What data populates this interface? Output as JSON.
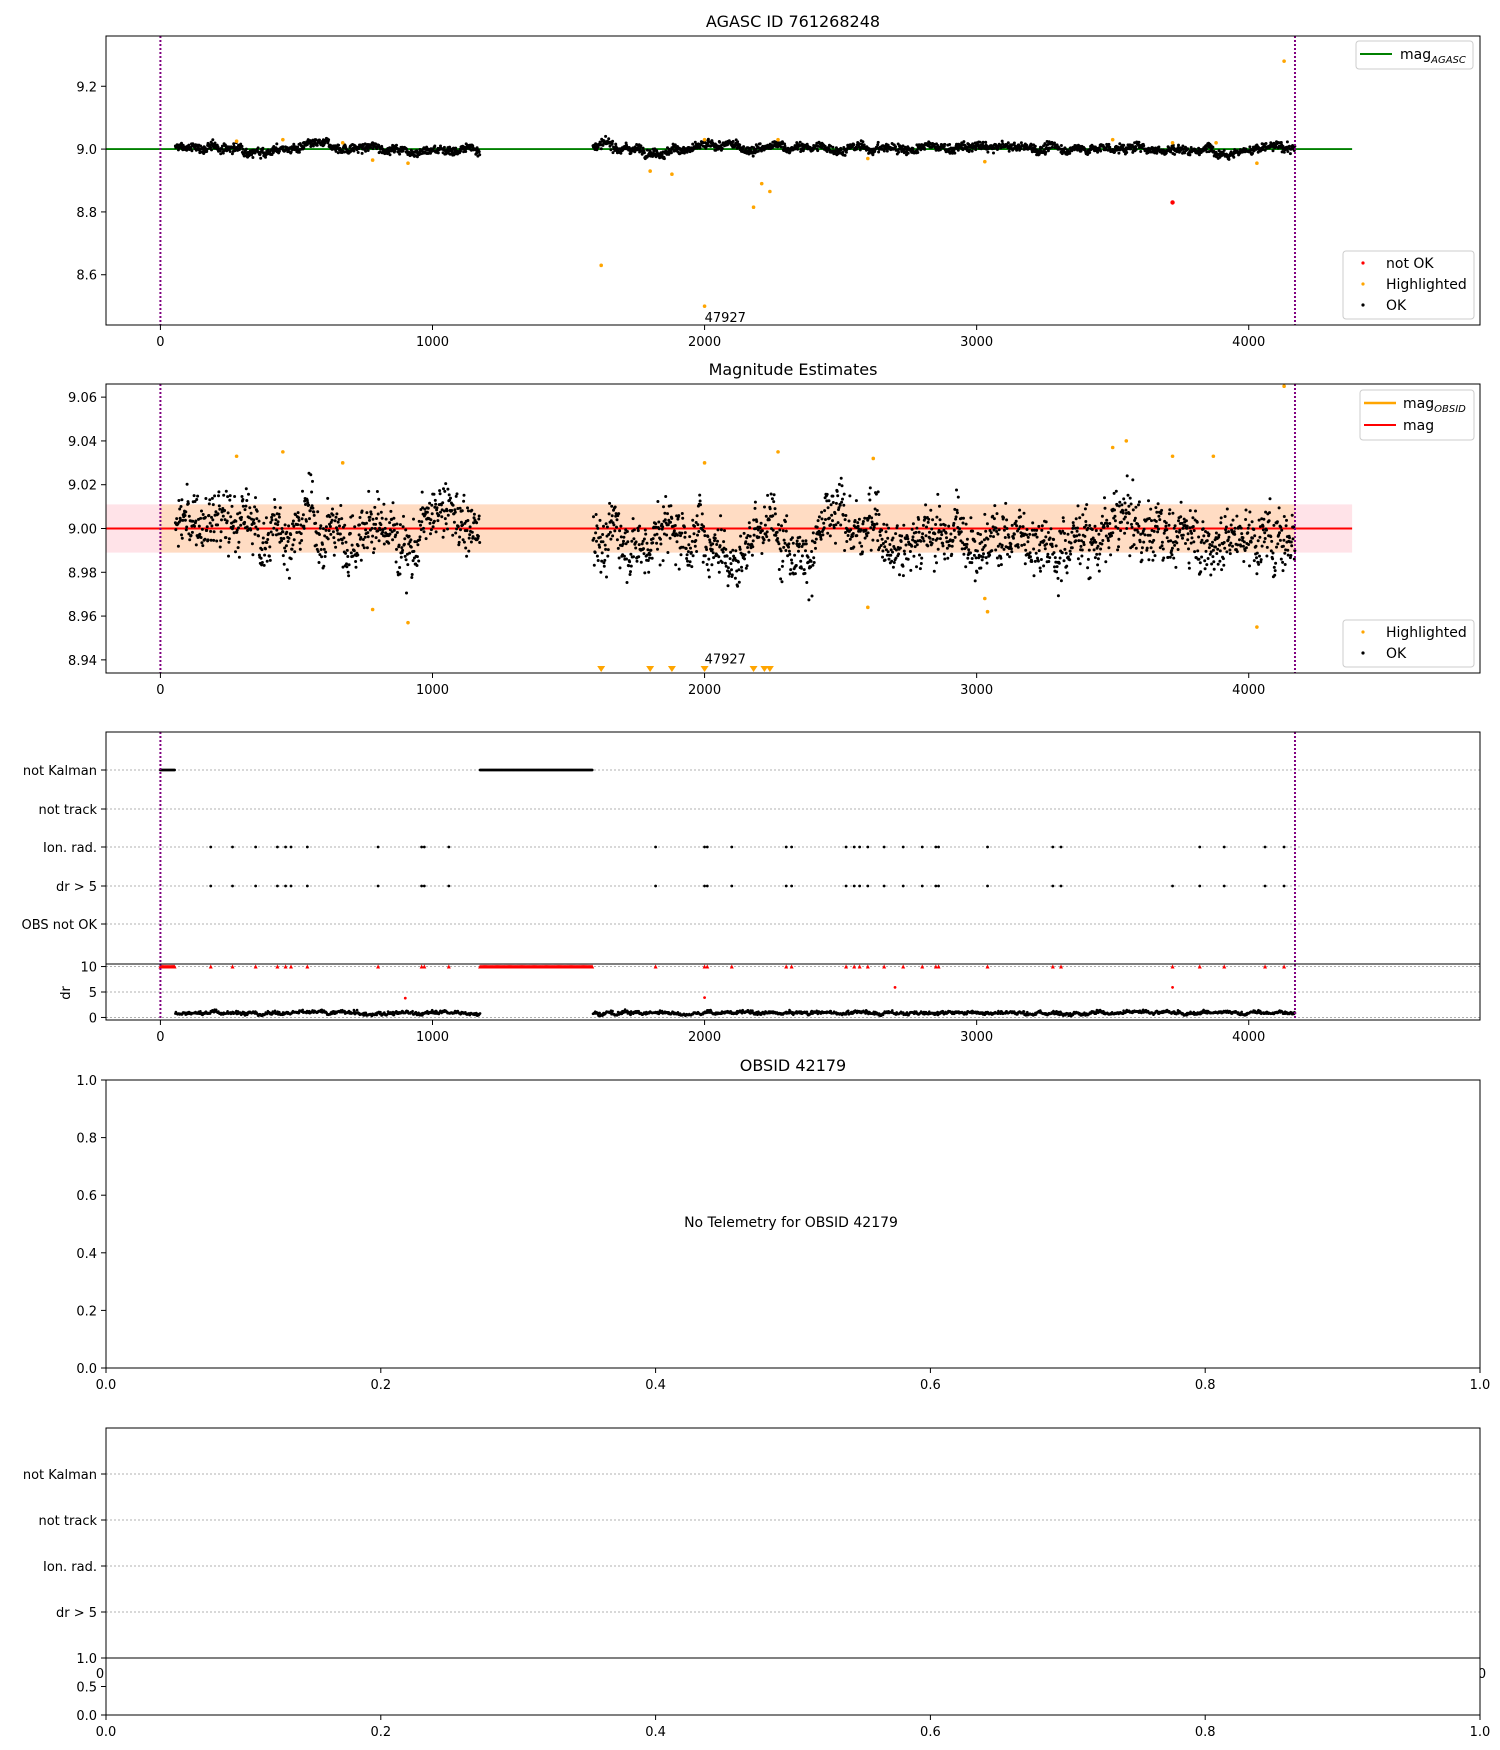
{
  "colors": {
    "ok": "#000000",
    "highlighted": "#ffa500",
    "not_ok": "#ff0000",
    "agasc": "#008000",
    "mag": "#ff0000",
    "mag_obsid": "#ffa500",
    "obs_window": "#800080",
    "band_outer": "#ffc0cb",
    "band_inner": "#ffdab9"
  },
  "chart_data": [
    {
      "id": "agasc-panel",
      "type": "scatter",
      "title": "AGASC ID 761268248",
      "xlim": [
        -200,
        4850
      ],
      "ylim": [
        8.44,
        9.36
      ],
      "xticks": [
        "0",
        "1000",
        "2000",
        "3000",
        "4000"
      ],
      "xtick_values": [
        0,
        1000,
        2000,
        3000,
        4000
      ],
      "yticks": [
        "8.6",
        "8.8",
        "9.0",
        "9.2"
      ],
      "ytick_values": [
        8.6,
        8.8,
        9.0,
        9.2
      ],
      "hline": {
        "y": 9.0,
        "x": [
          -200,
          4380
        ],
        "label": "mag",
        "sub": "AGASC"
      },
      "vlines": [
        0,
        4170
      ],
      "annotation": {
        "text": "47927",
        "x": 2000,
        "y": 8.465
      },
      "segments": [
        [
          55,
          1175
        ],
        [
          1590,
          4170
        ]
      ],
      "ok": {
        "center": 9.003,
        "spread": 0.012
      },
      "highlighted": [
        [
          280,
          9.025
        ],
        [
          450,
          9.03
        ],
        [
          670,
          9.02
        ],
        [
          780,
          8.965
        ],
        [
          910,
          8.955
        ],
        [
          1620,
          8.63
        ],
        [
          1800,
          8.93
        ],
        [
          1880,
          8.92
        ],
        [
          2000,
          8.5
        ],
        [
          2000,
          9.03
        ],
        [
          2180,
          8.815
        ],
        [
          2210,
          8.89
        ],
        [
          2240,
          8.865
        ],
        [
          2270,
          9.03
        ],
        [
          2600,
          8.97
        ],
        [
          3030,
          8.96
        ],
        [
          3500,
          9.03
        ],
        [
          3720,
          9.02
        ],
        [
          3880,
          9.02
        ],
        [
          4030,
          8.955
        ],
        [
          4130,
          9.28
        ]
      ],
      "not_ok": [
        [
          3720,
          8.83
        ]
      ],
      "legend_top": [
        {
          "label": "mag",
          "sub": "AGASC",
          "key": "agasc"
        }
      ],
      "legend_bottom": [
        {
          "label": "not OK",
          "key": "not_ok"
        },
        {
          "label": "Highlighted",
          "key": "highlighted"
        },
        {
          "label": "OK",
          "key": "ok"
        }
      ]
    },
    {
      "id": "estimates-panel",
      "type": "scatter",
      "title": "Magnitude Estimates",
      "xlim": [
        -200,
        4850
      ],
      "ylim": [
        8.934,
        9.066
      ],
      "xticks": [
        "0",
        "1000",
        "2000",
        "3000",
        "4000"
      ],
      "xtick_values": [
        0,
        1000,
        2000,
        3000,
        4000
      ],
      "yticks": [
        "8.94",
        "8.96",
        "8.98",
        "9.00",
        "9.02",
        "9.04",
        "9.06"
      ],
      "ytick_values": [
        8.94,
        8.96,
        8.98,
        9.0,
        9.02,
        9.04,
        9.06
      ],
      "hline": {
        "y": 9.0,
        "x": [
          -200,
          4380
        ],
        "label": "mag"
      },
      "band_outer": [
        8.989,
        9.011
      ],
      "band_inner": [
        8.989,
        9.011
      ],
      "band_inner_x": [
        0,
        4170
      ],
      "vlines": [
        0,
        4170
      ],
      "annotation": {
        "text": "47927",
        "x": 2000,
        "y": 8.937
      },
      "segments": [
        [
          55,
          1175
        ],
        [
          1590,
          4170
        ]
      ],
      "ok": {
        "center": 9.0,
        "spread": 0.011
      },
      "highlighted": [
        [
          280,
          9.033
        ],
        [
          450,
          9.035
        ],
        [
          670,
          9.03
        ],
        [
          780,
          8.963
        ],
        [
          910,
          8.957
        ],
        [
          2000,
          9.03
        ],
        [
          2270,
          9.035
        ],
        [
          2600,
          8.964
        ],
        [
          2620,
          9.032
        ],
        [
          3030,
          8.968
        ],
        [
          3040,
          8.962
        ],
        [
          3500,
          9.037
        ],
        [
          3550,
          9.04
        ],
        [
          3720,
          9.033
        ],
        [
          3870,
          9.033
        ],
        [
          4030,
          8.955
        ],
        [
          4130,
          9.065
        ]
      ],
      "below_markers": [
        1620,
        1800,
        1880,
        2000,
        2180,
        2220,
        2240
      ],
      "legend_top": [
        {
          "label": "mag",
          "sub": "OBSID",
          "key": "mag_obsid"
        },
        {
          "label": "mag",
          "key": "mag"
        }
      ],
      "legend_bottom": [
        {
          "label": "Highlighted",
          "key": "highlighted"
        },
        {
          "label": "OK",
          "key": "ok"
        }
      ]
    },
    {
      "id": "flags-panel",
      "type": "scatter",
      "xlim": [
        -200,
        4850
      ],
      "categories": [
        "not Kalman",
        "not track",
        "Ion. rad.",
        "dr > 5",
        "OBS not OK"
      ],
      "vlines": [
        0,
        4170
      ],
      "not_kalman_ranges": [
        [
          0,
          55
        ],
        [
          1175,
          1590
        ]
      ],
      "ion_rad": [
        185,
        265,
        350,
        430,
        460,
        480,
        540,
        800,
        960,
        970,
        1060,
        1820,
        2000,
        2010,
        2100,
        2300,
        2320,
        2520,
        2550,
        2570,
        2600,
        2660,
        2730,
        2800,
        2850,
        2860,
        3040,
        3280,
        3310,
        3820,
        3910,
        4060,
        4130
      ],
      "dr5": [
        185,
        265,
        350,
        430,
        460,
        480,
        540,
        800,
        960,
        970,
        1060,
        1820,
        2000,
        2010,
        2100,
        2300,
        2320,
        2520,
        2550,
        2570,
        2600,
        2660,
        2730,
        2800,
        2850,
        2860,
        3040,
        3280,
        3310,
        3720,
        3820,
        3910,
        4060,
        4130
      ]
    },
    {
      "id": "dr-panel",
      "type": "scatter",
      "xlim": [
        -200,
        4850
      ],
      "ylim": [
        0,
        10
      ],
      "ylabel": "dr",
      "xticks": [
        "0",
        "1000",
        "2000",
        "3000",
        "4000"
      ],
      "xtick_values": [
        0,
        1000,
        2000,
        3000,
        4000
      ],
      "yticks": [
        "0",
        "5",
        "10"
      ],
      "ytick_values": [
        0,
        5,
        10
      ],
      "outliers": [
        [
          900,
          3.8
        ],
        [
          2000,
          3.9
        ],
        [
          2700,
          5.9
        ],
        [
          3720,
          5.9
        ]
      ]
    },
    {
      "id": "obsid-panel",
      "type": "scatter",
      "title": "OBSID 42179",
      "xlim": [
        0,
        1
      ],
      "ylim": [
        0,
        1
      ],
      "xticks": [
        "0.0",
        "0.2",
        "0.4",
        "0.6",
        "0.8",
        "1.0"
      ],
      "yticks": [
        "0.0",
        "0.2",
        "0.4",
        "0.6",
        "0.8",
        "1.0"
      ],
      "message": "No Telemetry for OBSID 42179"
    },
    {
      "id": "flags2-panel",
      "type": "scatter",
      "categories": [
        "not Kalman",
        "not track",
        "Ion. rad.",
        "dr > 5"
      ],
      "hidden_xticks": [
        "0",
        "0"
      ]
    },
    {
      "id": "dr2-panel",
      "type": "scatter",
      "xlim": [
        0,
        1
      ],
      "ylim": [
        0,
        1
      ],
      "xticks": [
        "0.0",
        "0.2",
        "0.4",
        "0.6",
        "0.8",
        "1.0"
      ],
      "yticks": [
        "0.0",
        "0.5",
        "1.0"
      ]
    }
  ]
}
